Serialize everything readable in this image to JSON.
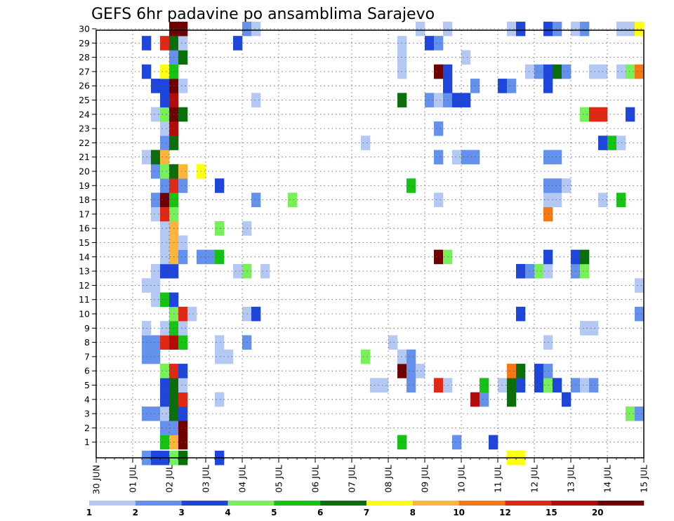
{
  "chart_data": {
    "type": "heatmap",
    "title": "GEFS 6hr padavine po ansamblima Sarajevo",
    "x_tick_labels": [
      "30 JUN",
      "01 JUL",
      "02 JUL",
      "03 JUL",
      "04 JUL",
      "05 JUL",
      "06 JUL",
      "07 JUL",
      "08 JUL",
      "09 JUL",
      "10 JUL",
      "11 JUL",
      "12 JUL",
      "13 JUL",
      "14 JUL",
      "15 JUL"
    ],
    "y_tick_labels": [
      "1",
      "2",
      "3",
      "4",
      "5",
      "6",
      "7",
      "8",
      "9",
      "10",
      "11",
      "12",
      "13",
      "14",
      "15",
      "16",
      "17",
      "18",
      "19",
      "20",
      "21",
      "22",
      "23",
      "24",
      "25",
      "26",
      "27",
      "28",
      "29",
      "30"
    ],
    "x_range": [
      0,
      60
    ],
    "y_range": [
      0,
      30
    ],
    "grid": true,
    "colorbar": {
      "levels": [
        1,
        2,
        3,
        4,
        5,
        6,
        7,
        8,
        10,
        12,
        15,
        20
      ],
      "level_labels": [
        "1",
        "2",
        "3",
        "4",
        "5",
        "6",
        "7",
        "8",
        "10",
        "12",
        "15",
        "20"
      ],
      "colors": [
        "#b4c8f4",
        "#6491ec",
        "#1e46dc",
        "#78f05a",
        "#14c314",
        "#0a6e0a",
        "#ffff14",
        "#ffb43c",
        "#f57814",
        "#e12814",
        "#b40a0a",
        "#6e0000"
      ]
    },
    "cells": [
      [
        6,
        0,
        1
      ],
      [
        7,
        0,
        2
      ],
      [
        8,
        0,
        2
      ],
      [
        9,
        0,
        3
      ],
      [
        10,
        0,
        5
      ],
      [
        14,
        0,
        2
      ],
      [
        47,
        0,
        6
      ],
      [
        47,
        0,
        6
      ],
      [
        46,
        0,
        6
      ],
      [
        47,
        0,
        6
      ],
      [
        8,
        1,
        4
      ],
      [
        9,
        1,
        7
      ],
      [
        10,
        1,
        11
      ],
      [
        34,
        1,
        4
      ],
      [
        40,
        1,
        1
      ],
      [
        44,
        1,
        2
      ],
      [
        8,
        2,
        1
      ],
      [
        9,
        2,
        1
      ],
      [
        10,
        2,
        11
      ],
      [
        6,
        3,
        1
      ],
      [
        7,
        3,
        1
      ],
      [
        8,
        3,
        0
      ],
      [
        9,
        3,
        5
      ],
      [
        10,
        3,
        2
      ],
      [
        59,
        3,
        3
      ],
      [
        60,
        3,
        1
      ],
      [
        8,
        4,
        2
      ],
      [
        9,
        4,
        5
      ],
      [
        10,
        4,
        9
      ],
      [
        14,
        4,
        0
      ],
      [
        42,
        4,
        10
      ],
      [
        43,
        4,
        1
      ],
      [
        46,
        4,
        5
      ],
      [
        52,
        4,
        2
      ],
      [
        8,
        5,
        2
      ],
      [
        9,
        5,
        5
      ],
      [
        10,
        5,
        0
      ],
      [
        31,
        5,
        0
      ],
      [
        32,
        5,
        0
      ],
      [
        35,
        5,
        1
      ],
      [
        38,
        5,
        9
      ],
      [
        39,
        5,
        0
      ],
      [
        43,
        5,
        4
      ],
      [
        45,
        5,
        0
      ],
      [
        46,
        5,
        5
      ],
      [
        47,
        5,
        2
      ],
      [
        49,
        5,
        2
      ],
      [
        50,
        5,
        3
      ],
      [
        51,
        5,
        2
      ],
      [
        53,
        5,
        1
      ],
      [
        54,
        5,
        0
      ],
      [
        55,
        5,
        1
      ],
      [
        8,
        6,
        3
      ],
      [
        9,
        6,
        9
      ],
      [
        10,
        6,
        2
      ],
      [
        34,
        6,
        11
      ],
      [
        35,
        6,
        1
      ],
      [
        36,
        6,
        0
      ],
      [
        46,
        6,
        8
      ],
      [
        47,
        6,
        5
      ],
      [
        49,
        6,
        2
      ],
      [
        50,
        6,
        1
      ],
      [
        6,
        7,
        1
      ],
      [
        7,
        7,
        1
      ],
      [
        14,
        7,
        0
      ],
      [
        15,
        7,
        0
      ],
      [
        30,
        7,
        3
      ],
      [
        34,
        7,
        0
      ],
      [
        35,
        7,
        1
      ],
      [
        6,
        8,
        1
      ],
      [
        7,
        8,
        1
      ],
      [
        8,
        8,
        9
      ],
      [
        9,
        8,
        10
      ],
      [
        10,
        8,
        4
      ],
      [
        14,
        8,
        0
      ],
      [
        17,
        8,
        1
      ],
      [
        33,
        8,
        0
      ],
      [
        50,
        8,
        0
      ],
      [
        6,
        9,
        0
      ],
      [
        8,
        9,
        0
      ],
      [
        9,
        9,
        4
      ],
      [
        10,
        9,
        0
      ],
      [
        54,
        9,
        0
      ],
      [
        55,
        9,
        0
      ],
      [
        9,
        10,
        3
      ],
      [
        10,
        10,
        9
      ],
      [
        11,
        10,
        0
      ],
      [
        17,
        10,
        0
      ],
      [
        18,
        10,
        2
      ],
      [
        47,
        10,
        2
      ],
      [
        60,
        10,
        1
      ],
      [
        7,
        11,
        0
      ],
      [
        8,
        11,
        4
      ],
      [
        9,
        11,
        2
      ],
      [
        6,
        12,
        0
      ],
      [
        7,
        12,
        0
      ],
      [
        60,
        12,
        0
      ],
      [
        7,
        13,
        0
      ],
      [
        8,
        13,
        2
      ],
      [
        9,
        13,
        2
      ],
      [
        16,
        13,
        0
      ],
      [
        17,
        13,
        3
      ],
      [
        19,
        13,
        0
      ],
      [
        47,
        13,
        2
      ],
      [
        48,
        13,
        1
      ],
      [
        49,
        13,
        3
      ],
      [
        50,
        13,
        0
      ],
      [
        53,
        13,
        1
      ],
      [
        54,
        13,
        3
      ],
      [
        8,
        14,
        0
      ],
      [
        9,
        14,
        7
      ],
      [
        10,
        14,
        1
      ],
      [
        12,
        14,
        1
      ],
      [
        13,
        14,
        1
      ],
      [
        14,
        14,
        4
      ],
      [
        38,
        14,
        11
      ],
      [
        39,
        14,
        3
      ],
      [
        50,
        14,
        2
      ],
      [
        53,
        14,
        2
      ],
      [
        54,
        14,
        5
      ],
      [
        8,
        15,
        0
      ],
      [
        9,
        15,
        7
      ],
      [
        10,
        15,
        0
      ],
      [
        8,
        16,
        0
      ],
      [
        9,
        16,
        7
      ],
      [
        14,
        16,
        3
      ],
      [
        17,
        16,
        0
      ],
      [
        7,
        17,
        0
      ],
      [
        8,
        17,
        9
      ],
      [
        9,
        17,
        3
      ],
      [
        50,
        17,
        8
      ],
      [
        7,
        18,
        1
      ],
      [
        8,
        18,
        11
      ],
      [
        9,
        18,
        4
      ],
      [
        18,
        18,
        1
      ],
      [
        22,
        18,
        3
      ],
      [
        38,
        18,
        0
      ],
      [
        50,
        18,
        0
      ],
      [
        51,
        18,
        0
      ],
      [
        56,
        18,
        0
      ],
      [
        58,
        18,
        4
      ],
      [
        8,
        19,
        1
      ],
      [
        9,
        19,
        9
      ],
      [
        10,
        19,
        1
      ],
      [
        14,
        19,
        2
      ],
      [
        35,
        19,
        4
      ],
      [
        50,
        19,
        1
      ],
      [
        51,
        19,
        1
      ],
      [
        52,
        19,
        0
      ],
      [
        7,
        20,
        1
      ],
      [
        8,
        20,
        3
      ],
      [
        9,
        20,
        5
      ],
      [
        10,
        20,
        7
      ],
      [
        12,
        20,
        6
      ],
      [
        6,
        21,
        0
      ],
      [
        7,
        21,
        5
      ],
      [
        8,
        21,
        7
      ],
      [
        38,
        21,
        1
      ],
      [
        40,
        21,
        0
      ],
      [
        41,
        21,
        1
      ],
      [
        42,
        21,
        1
      ],
      [
        50,
        21,
        1
      ],
      [
        51,
        21,
        1
      ],
      [
        8,
        22,
        1
      ],
      [
        9,
        22,
        5
      ],
      [
        30,
        22,
        0
      ],
      [
        56,
        22,
        2
      ],
      [
        57,
        22,
        4
      ],
      [
        58,
        22,
        0
      ],
      [
        8,
        23,
        0
      ],
      [
        9,
        23,
        10
      ],
      [
        38,
        23,
        1
      ],
      [
        7,
        24,
        0
      ],
      [
        8,
        24,
        3
      ],
      [
        9,
        24,
        11
      ],
      [
        10,
        24,
        5
      ],
      [
        54,
        24,
        3
      ],
      [
        55,
        24,
        9
      ],
      [
        56,
        24,
        9
      ],
      [
        59,
        24,
        2
      ],
      [
        8,
        25,
        2
      ],
      [
        9,
        25,
        10
      ],
      [
        18,
        25,
        0
      ],
      [
        34,
        25,
        5
      ],
      [
        37,
        25,
        1
      ],
      [
        38,
        25,
        0
      ],
      [
        39,
        25,
        1
      ],
      [
        40,
        25,
        2
      ],
      [
        41,
        25,
        2
      ],
      [
        7,
        26,
        2
      ],
      [
        8,
        26,
        2
      ],
      [
        9,
        26,
        11
      ],
      [
        10,
        26,
        0
      ],
      [
        39,
        26,
        2
      ],
      [
        42,
        26,
        1
      ],
      [
        45,
        26,
        2
      ],
      [
        46,
        26,
        1
      ],
      [
        50,
        26,
        2
      ],
      [
        6,
        27,
        2
      ],
      [
        8,
        27,
        6
      ],
      [
        9,
        27,
        4
      ],
      [
        34,
        27,
        0
      ],
      [
        38,
        27,
        11
      ],
      [
        39,
        27,
        2
      ],
      [
        48,
        27,
        0
      ],
      [
        49,
        27,
        1
      ],
      [
        50,
        27,
        2
      ],
      [
        51,
        27,
        5
      ],
      [
        52,
        27,
        1
      ],
      [
        55,
        27,
        0
      ],
      [
        56,
        27,
        0
      ],
      [
        58,
        27,
        0
      ],
      [
        59,
        27,
        3
      ],
      [
        60,
        27,
        8
      ],
      [
        9,
        28,
        1
      ],
      [
        10,
        28,
        5
      ],
      [
        34,
        28,
        0
      ],
      [
        41,
        28,
        0
      ],
      [
        6,
        29,
        2
      ],
      [
        8,
        29,
        9
      ],
      [
        9,
        29,
        5
      ],
      [
        10,
        29,
        0
      ],
      [
        16,
        29,
        2
      ],
      [
        34,
        29,
        0
      ],
      [
        37,
        29,
        2
      ],
      [
        38,
        29,
        1
      ],
      [
        9,
        30,
        11
      ],
      [
        10,
        30,
        11
      ],
      [
        17,
        30,
        1
      ],
      [
        18,
        30,
        0
      ],
      [
        36,
        30,
        0
      ],
      [
        39,
        30,
        0
      ],
      [
        46,
        30,
        0
      ],
      [
        47,
        30,
        2
      ],
      [
        50,
        30,
        2
      ],
      [
        51,
        30,
        1
      ],
      [
        53,
        30,
        0
      ],
      [
        54,
        30,
        1
      ],
      [
        58,
        30,
        0
      ],
      [
        59,
        30,
        0
      ],
      [
        60,
        30,
        6
      ]
    ]
  }
}
